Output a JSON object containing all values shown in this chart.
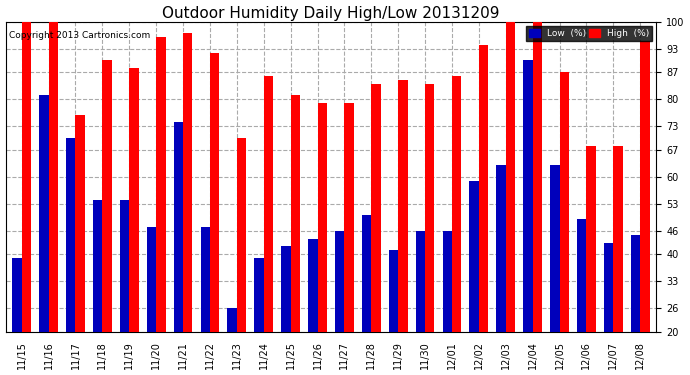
{
  "title": "Outdoor Humidity Daily High/Low 20131209",
  "copyright": "Copyright 2013 Cartronics.com",
  "categories": [
    "11/15",
    "11/16",
    "11/17",
    "11/18",
    "11/19",
    "11/20",
    "11/21",
    "11/22",
    "11/23",
    "11/24",
    "11/25",
    "11/26",
    "11/27",
    "11/28",
    "11/29",
    "11/30",
    "12/01",
    "12/02",
    "12/03",
    "12/04",
    "12/05",
    "12/06",
    "12/07",
    "12/08"
  ],
  "high": [
    100,
    100,
    76,
    90,
    88,
    96,
    97,
    92,
    70,
    86,
    81,
    79,
    79,
    84,
    85,
    84,
    86,
    94,
    100,
    100,
    87,
    68,
    68,
    95
  ],
  "low": [
    39,
    81,
    70,
    54,
    54,
    47,
    74,
    47,
    26,
    39,
    42,
    44,
    46,
    50,
    41,
    46,
    46,
    59,
    63,
    90,
    63,
    49,
    43,
    45
  ],
  "high_color": "#ff0000",
  "low_color": "#0000bb",
  "bg_color": "#ffffff",
  "grid_color": "#aaaaaa",
  "ylim_min": 20,
  "ylim_max": 100,
  "yticks": [
    20,
    26,
    33,
    40,
    46,
    53,
    60,
    67,
    73,
    80,
    87,
    93,
    100
  ],
  "bar_width": 0.35,
  "title_fontsize": 11,
  "tick_fontsize": 7,
  "legend_low_label": "Low  (%)",
  "legend_high_label": "High  (%)"
}
